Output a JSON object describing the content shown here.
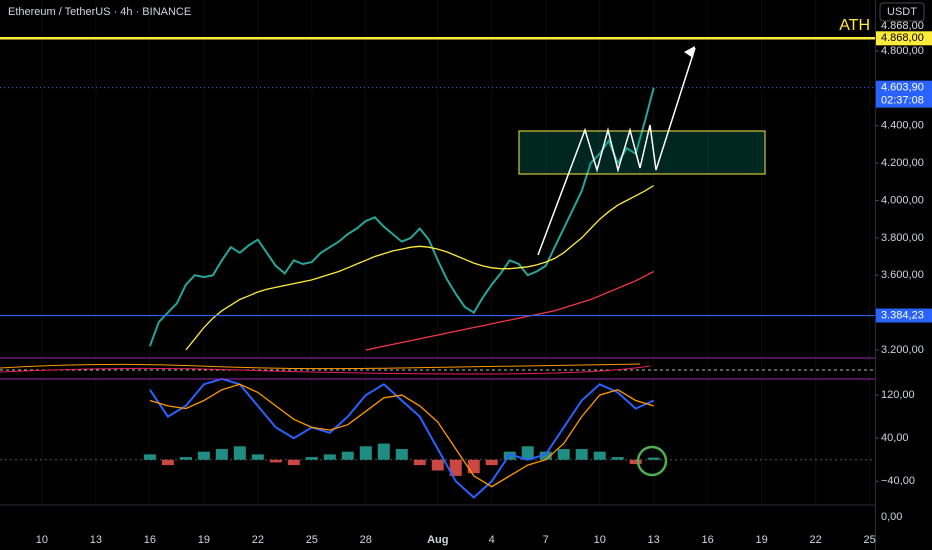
{
  "chart_data": [
    {
      "type": "line",
      "title": "Ethereum / TetherUS · 4h · BINANCE",
      "currency": "USDT",
      "annotation": "ATH",
      "x": [
        16,
        16.5,
        17,
        17.5,
        18,
        18.5,
        19,
        19.5,
        20,
        20.5,
        21,
        21.5,
        22,
        22.5,
        23,
        23.5,
        24,
        24.5,
        25,
        25.5,
        26,
        26.5,
        27,
        27.5,
        28,
        28.5,
        29,
        29.5,
        30,
        30.5,
        31,
        31.5,
        32,
        32.5,
        33,
        33.5,
        34,
        34.5,
        35,
        35.5,
        36,
        36.5,
        37,
        37.5,
        38,
        38.5,
        39,
        39.5,
        40,
        40.5,
        41,
        41.5,
        42,
        42.5,
        43,
        43.5,
        44
      ],
      "series": [
        {
          "color": "#26a69a",
          "values": [
            3220,
            3350,
            3400,
            3450,
            3550,
            3600,
            3590,
            3600,
            3680,
            3750,
            3720,
            3760,
            3790,
            3720,
            3650,
            3610,
            3680,
            3660,
            3670,
            3720,
            3750,
            3780,
            3820,
            3850,
            3890,
            3910,
            3860,
            3820,
            3780,
            3800,
            3850,
            3790,
            3680,
            3580,
            3500,
            3430,
            3400,
            3480,
            3550,
            3610,
            3680,
            3660,
            3600,
            3620,
            3650,
            3750,
            3850,
            3950,
            4050,
            4200,
            4250,
            4320,
            4200,
            4280,
            4250,
            4420,
            4603.9
          ]
        },
        {
          "color": "#ffeb3b",
          "values": [
            null,
            null,
            null,
            null,
            3200,
            3260,
            3320,
            3370,
            3410,
            3440,
            3470,
            3490,
            3510,
            3525,
            3535,
            3545,
            3555,
            3565,
            3575,
            3590,
            3605,
            3620,
            3640,
            3660,
            3680,
            3700,
            3715,
            3730,
            3740,
            3750,
            3755,
            3750,
            3740,
            3725,
            3705,
            3685,
            3665,
            3650,
            3640,
            3635,
            3635,
            3640,
            3645,
            3655,
            3670,
            3690,
            3720,
            3760,
            3800,
            3850,
            3900,
            3940,
            3975,
            4000,
            4025,
            4050,
            4080
          ]
        },
        {
          "color": "#f23645",
          "values": [
            null,
            null,
            null,
            null,
            null,
            null,
            null,
            null,
            null,
            null,
            null,
            null,
            null,
            null,
            null,
            null,
            null,
            null,
            null,
            null,
            null,
            null,
            null,
            null,
            3200,
            3210,
            3220,
            3230,
            3240,
            3250,
            3260,
            3270,
            3280,
            3290,
            3300,
            3310,
            3320,
            3330,
            3340,
            3350,
            3360,
            3370,
            3380,
            3390,
            3400,
            3410,
            3425,
            3440,
            3455,
            3470,
            3490,
            3510,
            3530,
            3550,
            3570,
            3595,
            3620
          ]
        }
      ],
      "xlim": [
        7.67,
        56.3
      ],
      "ylim": [
        3157,
        5073
      ],
      "xticks": [
        10,
        13,
        16,
        19,
        22,
        25,
        28,
        {
          "value": 32,
          "label": "Aug"
        },
        35,
        38,
        41,
        44,
        47,
        50,
        53,
        56
      ],
      "xtick_labels": [
        "10",
        "13",
        "16",
        "19",
        "22",
        "25",
        "28",
        "Aug",
        "4",
        "7",
        "10",
        "13",
        "16",
        "19",
        "22",
        "25"
      ],
      "yticks": [
        {
          "value": 4800,
          "label": "4.800,00"
        },
        {
          "value": 4400,
          "label": "4.400,00"
        },
        {
          "value": 4200,
          "label": "4.200,00"
        },
        {
          "value": 4000,
          "label": "4.000,00"
        },
        {
          "value": 3800,
          "label": "3.800,00"
        },
        {
          "value": 3600,
          "label": "3.600,00"
        },
        {
          "value": 3200,
          "label": "3.200,00"
        }
      ],
      "hlines": [
        {
          "value": 4868,
          "label": "4.868,00",
          "color": "#ffeb3b"
        },
        {
          "value": 3384.23,
          "label": "3.384,23",
          "color": "#2962ff"
        }
      ],
      "last_price": {
        "value": 4603.9,
        "label": "4.603,90",
        "countdown": "02:37:08",
        "color": "#2962ff"
      }
    },
    {
      "type": "line",
      "x": [
        16,
        17,
        18,
        19,
        20,
        21,
        22,
        23,
        24,
        25,
        26,
        27,
        28,
        29,
        30,
        31,
        32,
        33,
        34,
        35,
        36,
        37,
        38,
        39,
        40,
        41,
        42,
        43,
        44
      ],
      "series": [
        {
          "color": "#2962ff",
          "values": [
            130,
            80,
            100,
            140,
            150,
            140,
            100,
            60,
            40,
            60,
            50,
            80,
            120,
            140,
            110,
            80,
            20,
            -40,
            -70,
            -40,
            10,
            0,
            10,
            60,
            110,
            140,
            125,
            95,
            110
          ]
        },
        {
          "color": "#ff9800",
          "values": [
            110,
            100,
            95,
            110,
            130,
            140,
            125,
            100,
            75,
            60,
            55,
            65,
            90,
            115,
            120,
            100,
            70,
            20,
            -30,
            -50,
            -30,
            -10,
            0,
            30,
            80,
            120,
            130,
            110,
            100
          ]
        }
      ],
      "histogram": {
        "pos_color": "#26a69a",
        "neg_color": "#ef5350",
        "values": [
          10,
          -10,
          5,
          15,
          20,
          25,
          10,
          -5,
          -10,
          5,
          10,
          15,
          25,
          30,
          20,
          -10,
          -20,
          -30,
          -25,
          -10,
          15,
          25,
          15,
          20,
          20,
          15,
          5,
          -8,
          4
        ]
      },
      "ylim": [
        -84,
        148
      ],
      "yticks": [
        {
          "value": 120,
          "label": "120,00"
        },
        {
          "value": 40,
          "label": "40,00"
        },
        {
          "value": -40,
          "label": "−40,00"
        }
      ],
      "bottom_label": "0,00"
    }
  ]
}
